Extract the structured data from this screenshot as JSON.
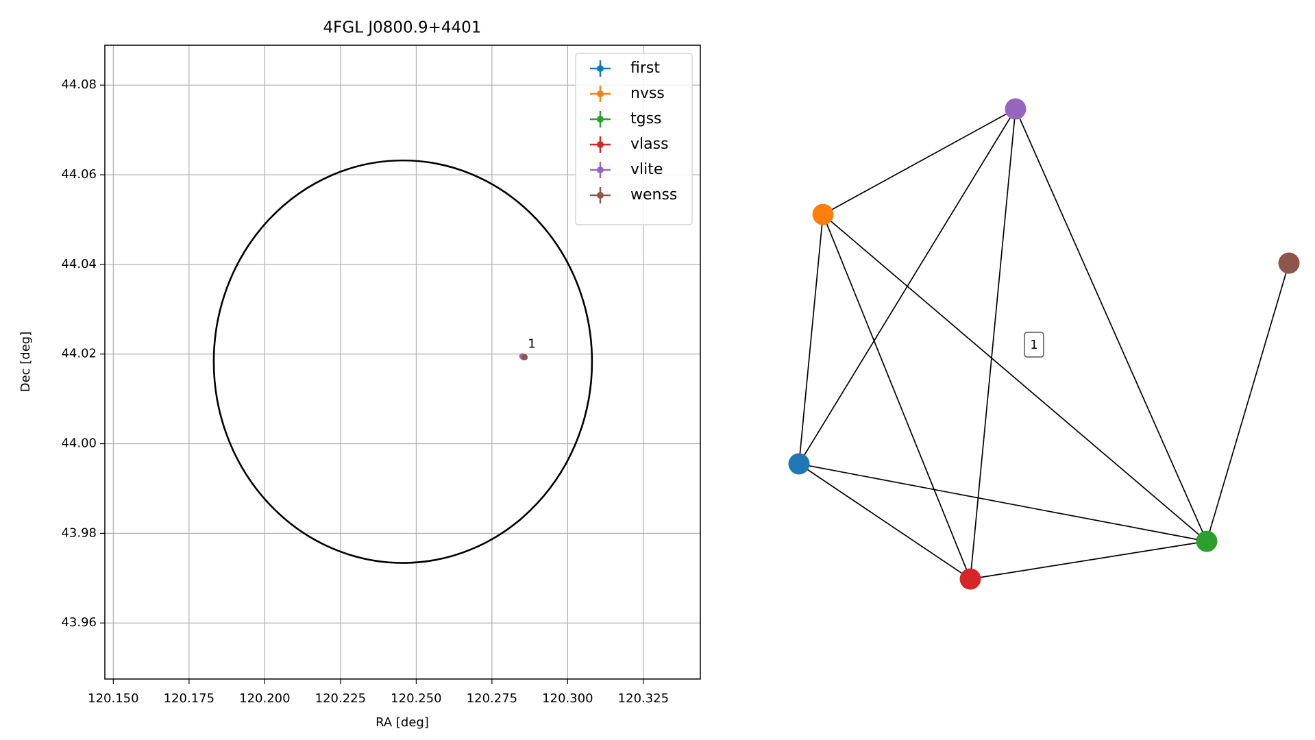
{
  "chart_data": {
    "type": "scatter",
    "title": "4FGL J0800.9+4401",
    "x_label": "RA [deg]",
    "y_label": "Dec [deg]",
    "xlim": [
      120.1472,
      120.3438
    ],
    "ylim": [
      43.9475,
      44.0889
    ],
    "xticks": [
      {
        "value": 120.15,
        "label": "120.150"
      },
      120.175,
      {
        "value": 120.2,
        "label": "120.200"
      },
      120.225,
      {
        "value": 120.25,
        "label": "120.250"
      },
      120.275,
      {
        "value": 120.3,
        "label": "120.300"
      },
      120.325
    ],
    "yticks": [
      43.96,
      43.98,
      {
        "value": 44.0,
        "label": "44.00"
      },
      44.02,
      44.04,
      44.06,
      44.08
    ],
    "grid": true,
    "legend": "upper right",
    "circle": {
      "ra": 120.2456,
      "dec": 44.0183,
      "radius": 0.0449
    },
    "series": [
      {
        "name": "first",
        "color": "#1f77b4",
        "x": [
          120.2853
        ],
        "values": [
          44.0194
        ]
      },
      {
        "name": "nvss",
        "color": "#ff7f0e",
        "x": [
          120.2855
        ],
        "values": [
          44.0193
        ]
      },
      {
        "name": "tgss",
        "color": "#2ca02c",
        "x": [
          120.2856
        ],
        "values": [
          44.0193
        ]
      },
      {
        "name": "vlass",
        "color": "#d62728",
        "x": [
          120.2853
        ],
        "values": [
          44.0194
        ]
      },
      {
        "name": "vlite",
        "color": "#9467bd",
        "x": [
          120.285
        ],
        "values": [
          44.0195
        ]
      },
      {
        "name": "wenss",
        "color": "#8c564b",
        "x": [
          120.2858
        ],
        "values": [
          44.0193
        ]
      }
    ],
    "annotation": {
      "text": "1",
      "x": 120.2853,
      "y": 44.0194
    }
  },
  "graph": {
    "label": "1"
  }
}
